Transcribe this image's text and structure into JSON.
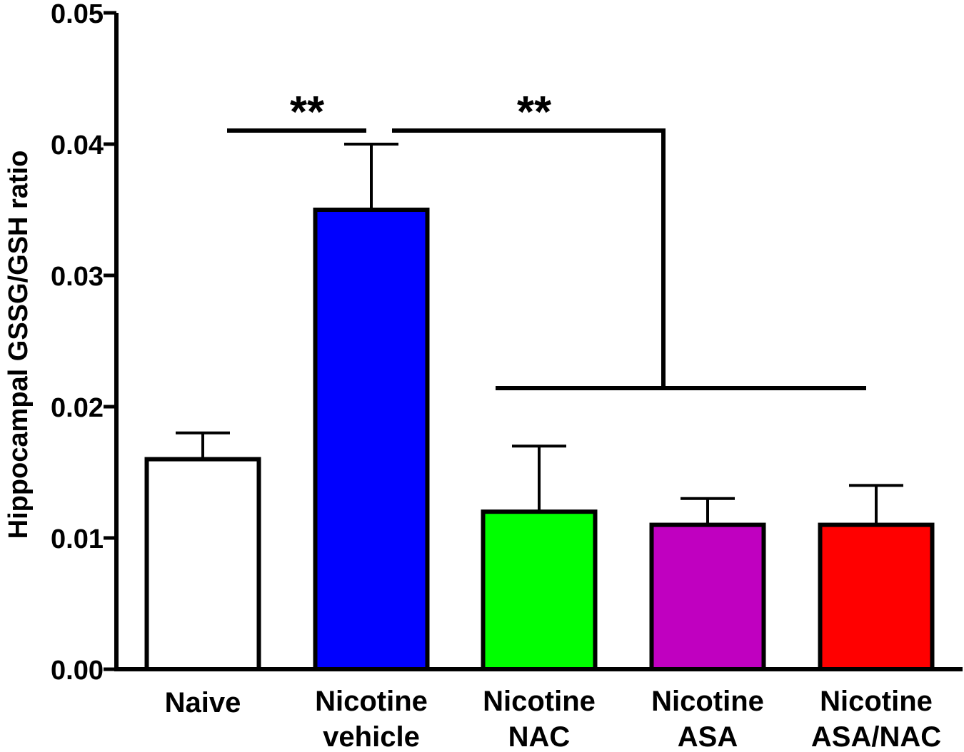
{
  "chart_data": {
    "type": "bar",
    "ylabel": "Hippocampal GSSG/GSH ratio",
    "xlabel": "",
    "ylim": [
      0,
      0.05
    ],
    "yticks": [
      "0.00",
      "0.01",
      "0.02",
      "0.03",
      "0.04",
      "0.05"
    ],
    "categories": [
      [
        "Naive"
      ],
      [
        "Nicotine",
        "vehicle"
      ],
      [
        "Nicotine",
        "NAC"
      ],
      [
        "Nicotine",
        "ASA"
      ],
      [
        "Nicotine",
        "ASA/NAC"
      ]
    ],
    "values": [
      0.016,
      0.035,
      0.012,
      0.011,
      0.011
    ],
    "error_upper": [
      0.018,
      0.04,
      0.017,
      0.013,
      0.014
    ],
    "colors": [
      "#ffffff",
      "#0000ff",
      "#00ff00",
      "#c000c0",
      "#ff0000"
    ],
    "significance": [
      {
        "label": "**",
        "between": "Naive vs Nicotine vehicle"
      },
      {
        "label": "**",
        "between": "Nicotine vehicle vs Nicotine NAC, Nicotine ASA, Nicotine ASA/NAC"
      }
    ],
    "grid": false,
    "legend": "none"
  }
}
